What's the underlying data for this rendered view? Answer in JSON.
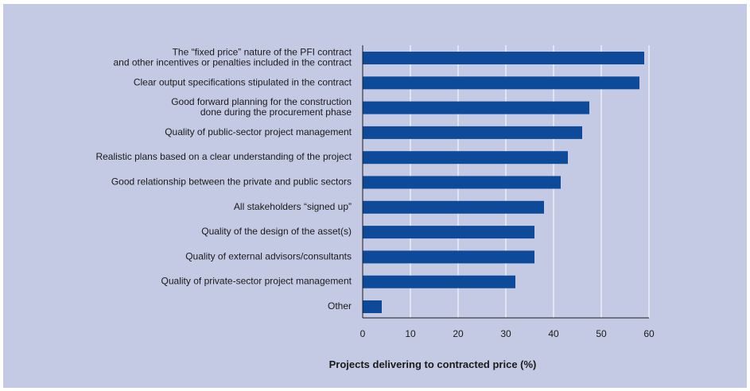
{
  "chart_data": {
    "type": "bar",
    "orientation": "horizontal",
    "categories": [
      [
        "The “fixed price” nature of the PFI contract",
        "and other incentives or penalties included in the contract"
      ],
      [
        "Clear output specifications stipulated in the contract"
      ],
      [
        "Good forward planning for the construction",
        "done during the procurement phase"
      ],
      [
        "Quality of public-sector project management"
      ],
      [
        "Realistic plans based on a clear understanding of the project"
      ],
      [
        "Good relationship between the private and public sectors"
      ],
      [
        "All stakeholders “signed up”"
      ],
      [
        "Quality of the design of the asset(s)"
      ],
      [
        "Quality of external advisors/consultants"
      ],
      [
        "Quality of private-sector project management"
      ],
      [
        "Other"
      ]
    ],
    "values": [
      59,
      58,
      47.5,
      46,
      43,
      41.5,
      38,
      36,
      36,
      32,
      4
    ],
    "xlabel": "Projects delivering to contracted price (%)",
    "xlim": [
      0,
      60
    ],
    "xticks": [
      "0",
      "10",
      "20",
      "30",
      "40",
      "50",
      "60"
    ],
    "grid": "vertical",
    "colors": {
      "background": "#c5cae4",
      "bar": "#0d4a9a",
      "grid": "#ffffff",
      "axis": "#1a1a1a"
    }
  }
}
